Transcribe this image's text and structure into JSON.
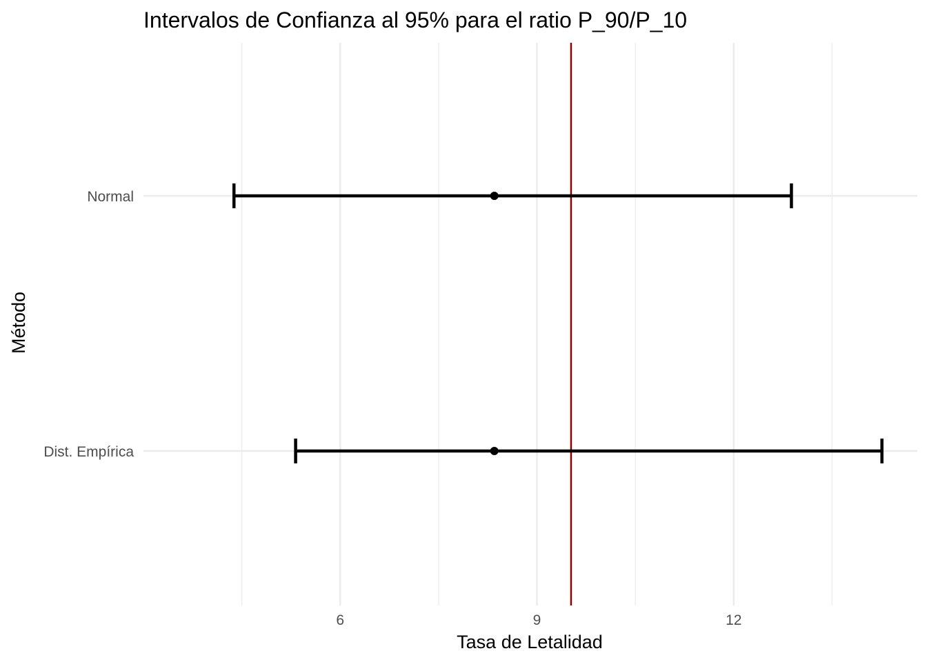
{
  "chart_data": {
    "type": "errorbar",
    "title": "Intervalos de Confianza al 95% para el ratio P_90/P_10",
    "xlabel": "Tasa de Letalidad",
    "ylabel": "Método",
    "xlim": [
      3.0,
      14.8
    ],
    "x_ticks": [
      6,
      9,
      12
    ],
    "x_minor_ticks": [
      4.5,
      7.5,
      10.5,
      13.5
    ],
    "categories": [
      "Normal",
      "Dist. Empírica"
    ],
    "intervals": [
      {
        "category": "Normal",
        "lower": 4.38,
        "estimate": 8.35,
        "upper": 12.88
      },
      {
        "category": "Dist. Empírica",
        "lower": 5.32,
        "estimate": 8.35,
        "upper": 14.26
      }
    ],
    "reference_line": {
      "x": 9.52,
      "color": "#8b0000"
    },
    "grid": true,
    "legend": "none",
    "colors": {
      "interval": "#000000",
      "grid": "#ebebeb",
      "reference": "#8b0000"
    }
  }
}
